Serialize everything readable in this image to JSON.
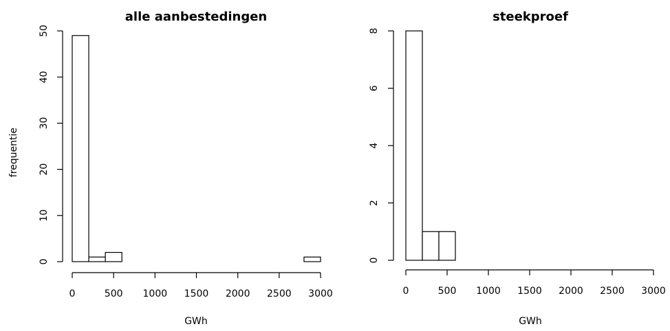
{
  "chart_data": [
    {
      "type": "bar",
      "title": "alle aanbestedingen",
      "xlabel": "GWh",
      "ylabel": "frequentie",
      "bin_edges": [
        0,
        200,
        400,
        600,
        800,
        1000,
        1200,
        1400,
        1600,
        1800,
        2000,
        2200,
        2400,
        2600,
        2800,
        3000
      ],
      "values": [
        49,
        1,
        2,
        0,
        0,
        0,
        0,
        0,
        0,
        0,
        0,
        0,
        0,
        0,
        1
      ],
      "xlim": [
        0,
        3000
      ],
      "ylim": [
        0,
        50
      ],
      "xticks": [
        "0",
        "500",
        "1000",
        "1500",
        "2000",
        "2500",
        "3000"
      ],
      "yticks": [
        "0",
        "10",
        "20",
        "30",
        "40",
        "50"
      ],
      "grid": false
    },
    {
      "type": "bar",
      "title": "steekproef",
      "xlabel": "GWh",
      "ylabel": "",
      "bin_edges": [
        0,
        200,
        400,
        600
      ],
      "values": [
        8,
        1,
        1
      ],
      "xlim": [
        0,
        3000
      ],
      "ylim": [
        0,
        8
      ],
      "xticks": [
        "0",
        "500",
        "1000",
        "1500",
        "2000",
        "2500",
        "3000"
      ],
      "yticks": [
        "0",
        "2",
        "4",
        "6",
        "8"
      ],
      "grid": false
    }
  ]
}
